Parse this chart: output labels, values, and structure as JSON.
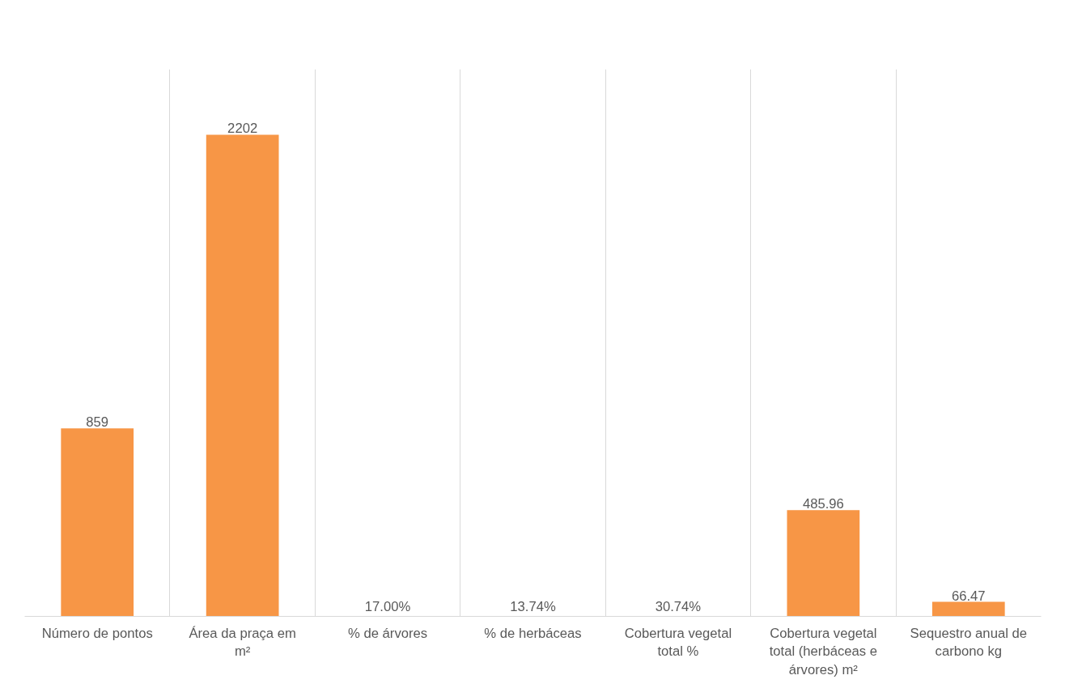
{
  "chart_data": {
    "type": "bar",
    "categories": [
      "Número de pontos",
      "Área da praça em m²",
      "% de árvores",
      "% de herbáceas",
      "Cobertura vegetal total %",
      "Cobertura vegetal total (herbáceas e árvores) m²",
      "Sequestro anual de carbono kg"
    ],
    "values": [
      859,
      2202,
      0.17,
      0.1374,
      0.3074,
      485.96,
      66.47
    ],
    "value_labels": [
      "859",
      "2202",
      "17.00%",
      "13.74%",
      "30.74%",
      "485.96",
      "66.47"
    ],
    "color": "#f79646",
    "grid": "x"
  }
}
